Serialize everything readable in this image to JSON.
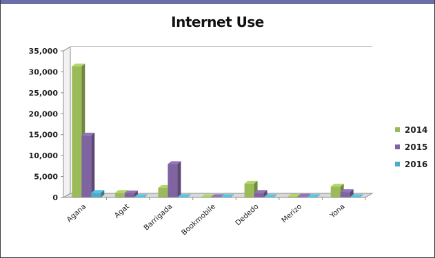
{
  "chart_data": {
    "type": "bar",
    "title": "Internet Use",
    "xlabel": "",
    "ylabel": "",
    "categories": [
      "Agana",
      "Agat",
      "Barrigada",
      "Bookmobile",
      "Dededo",
      "Merizo",
      "Yona"
    ],
    "series": [
      {
        "name": "2014",
        "color": "#9bbb59",
        "values": [
          31300,
          1100,
          2300,
          100,
          3300,
          200,
          2600
        ]
      },
      {
        "name": "2015",
        "color": "#8064a2",
        "values": [
          14800,
          1000,
          8000,
          100,
          1100,
          200,
          1300
        ]
      },
      {
        "name": "2016",
        "color": "#4bacc6",
        "values": [
          1100,
          100,
          100,
          100,
          100,
          100,
          100
        ]
      }
    ],
    "yticks": [
      "0",
      "5,000",
      "10,000",
      "15,000",
      "20,000",
      "25,000",
      "30,000",
      "35,000"
    ],
    "ylim": [
      0,
      35000
    ],
    "grid": true,
    "legend_position": "right"
  }
}
